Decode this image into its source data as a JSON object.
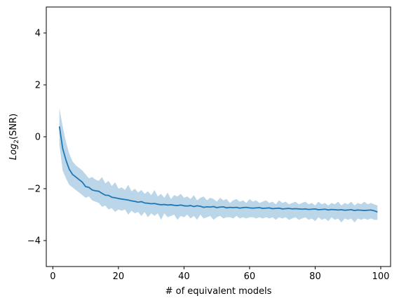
{
  "chart_data": {
    "type": "line",
    "title": "",
    "xlabel": "# of equivalent models",
    "ylabel": {
      "prefix": "Log",
      "subscript": "2",
      "suffix": "(SNR)"
    },
    "xlim": [
      -2,
      103
    ],
    "ylim": [
      -5,
      5
    ],
    "xticks": [
      0,
      20,
      40,
      60,
      80,
      100
    ],
    "yticks": [
      -4,
      -2,
      0,
      2,
      4
    ],
    "xtick_labels": [
      "0",
      "20",
      "40",
      "60",
      "80",
      "100"
    ],
    "ytick_labels": [
      "−4",
      "−2",
      "0",
      "2",
      "4"
    ],
    "grid": false,
    "legend": "none",
    "colors": {
      "line": "#1f77b4",
      "band": "#1f77b4",
      "band_opacity": 0.3
    },
    "series": [
      {
        "x": [
          2,
          3,
          4,
          5,
          6,
          7,
          8,
          9,
          10,
          11,
          12,
          13,
          14,
          15,
          16,
          17,
          18,
          19,
          20,
          21,
          22,
          23,
          24,
          25,
          26,
          27,
          28,
          29,
          30,
          31,
          32,
          33,
          34,
          35,
          36,
          37,
          38,
          39,
          40,
          41,
          42,
          43,
          44,
          45,
          46,
          47,
          48,
          49,
          50,
          51,
          52,
          53,
          54,
          55,
          56,
          57,
          58,
          59,
          60,
          61,
          62,
          63,
          64,
          65,
          66,
          67,
          68,
          69,
          70,
          71,
          72,
          73,
          74,
          75,
          76,
          77,
          78,
          79,
          80,
          81,
          82,
          83,
          84,
          85,
          86,
          87,
          88,
          89,
          90,
          91,
          92,
          93,
          94,
          95,
          96,
          97,
          98,
          99
        ],
        "mean": [
          0.4,
          -0.45,
          -0.9,
          -1.25,
          -1.45,
          -1.55,
          -1.65,
          -1.75,
          -1.92,
          -1.95,
          -2.05,
          -2.08,
          -2.1,
          -2.18,
          -2.25,
          -2.26,
          -2.33,
          -2.35,
          -2.38,
          -2.4,
          -2.42,
          -2.44,
          -2.47,
          -2.49,
          -2.52,
          -2.5,
          -2.55,
          -2.56,
          -2.58,
          -2.57,
          -2.6,
          -2.62,
          -2.61,
          -2.63,
          -2.62,
          -2.64,
          -2.65,
          -2.63,
          -2.66,
          -2.67,
          -2.65,
          -2.69,
          -2.66,
          -2.68,
          -2.72,
          -2.7,
          -2.71,
          -2.69,
          -2.73,
          -2.71,
          -2.7,
          -2.74,
          -2.72,
          -2.73,
          -2.72,
          -2.75,
          -2.73,
          -2.72,
          -2.74,
          -2.75,
          -2.74,
          -2.73,
          -2.76,
          -2.75,
          -2.74,
          -2.77,
          -2.76,
          -2.75,
          -2.78,
          -2.77,
          -2.76,
          -2.78,
          -2.77,
          -2.78,
          -2.79,
          -2.78,
          -2.8,
          -2.79,
          -2.78,
          -2.81,
          -2.8,
          -2.79,
          -2.82,
          -2.8,
          -2.81,
          -2.82,
          -2.81,
          -2.83,
          -2.82,
          -2.81,
          -2.84,
          -2.82,
          -2.83,
          -2.84,
          -2.83,
          -2.82,
          -2.85,
          -2.9
        ],
        "upper": [
          1.1,
          0.4,
          -0.2,
          -0.65,
          -0.95,
          -1.1,
          -1.2,
          -1.3,
          -1.45,
          -1.6,
          -1.55,
          -1.65,
          -1.7,
          -1.55,
          -1.8,
          -1.7,
          -1.9,
          -1.75,
          -2.0,
          -1.95,
          -2.05,
          -1.85,
          -2.1,
          -2.0,
          -2.15,
          -2.05,
          -2.2,
          -2.1,
          -2.25,
          -2.05,
          -2.3,
          -2.2,
          -2.35,
          -2.15,
          -2.4,
          -2.25,
          -2.3,
          -2.2,
          -2.35,
          -2.3,
          -2.4,
          -2.25,
          -2.45,
          -2.35,
          -2.3,
          -2.45,
          -2.35,
          -2.4,
          -2.5,
          -2.35,
          -2.45,
          -2.4,
          -2.55,
          -2.45,
          -2.4,
          -2.5,
          -2.45,
          -2.55,
          -2.4,
          -2.5,
          -2.45,
          -2.55,
          -2.5,
          -2.45,
          -2.55,
          -2.5,
          -2.6,
          -2.45,
          -2.55,
          -2.5,
          -2.6,
          -2.55,
          -2.5,
          -2.6,
          -2.55,
          -2.5,
          -2.6,
          -2.55,
          -2.65,
          -2.5,
          -2.6,
          -2.55,
          -2.65,
          -2.55,
          -2.6,
          -2.5,
          -2.65,
          -2.55,
          -2.6,
          -2.5,
          -2.65,
          -2.55,
          -2.6,
          -2.5,
          -2.6,
          -2.55,
          -2.6,
          -2.65
        ],
        "lower": [
          -0.3,
          -1.3,
          -1.6,
          -1.85,
          -1.95,
          -2.05,
          -2.15,
          -2.25,
          -2.35,
          -2.3,
          -2.45,
          -2.5,
          -2.55,
          -2.7,
          -2.65,
          -2.8,
          -2.75,
          -2.9,
          -2.8,
          -2.85,
          -2.8,
          -3.0,
          -2.85,
          -2.95,
          -2.9,
          -3.05,
          -2.9,
          -3.1,
          -2.95,
          -3.05,
          -2.95,
          -3.2,
          -2.95,
          -3.1,
          -3.05,
          -3.0,
          -3.2,
          -3.05,
          -3.1,
          -3.0,
          -3.15,
          -3.05,
          -3.2,
          -3.0,
          -3.15,
          -3.1,
          -3.05,
          -3.2,
          -3.1,
          -3.05,
          -3.15,
          -3.1,
          -3.1,
          -3.15,
          -3.05,
          -3.15,
          -3.1,
          -3.15,
          -3.1,
          -3.1,
          -3.15,
          -3.1,
          -3.15,
          -3.1,
          -3.15,
          -3.1,
          -3.2,
          -3.1,
          -3.15,
          -3.1,
          -3.2,
          -3.15,
          -3.1,
          -3.2,
          -3.15,
          -3.1,
          -3.2,
          -3.15,
          -3.25,
          -3.1,
          -3.2,
          -3.15,
          -3.25,
          -3.1,
          -3.2,
          -3.15,
          -3.3,
          -3.15,
          -3.2,
          -3.15,
          -3.3,
          -3.15,
          -3.2,
          -3.15,
          -3.2,
          -3.15,
          -3.2,
          -3.2
        ]
      }
    ]
  }
}
